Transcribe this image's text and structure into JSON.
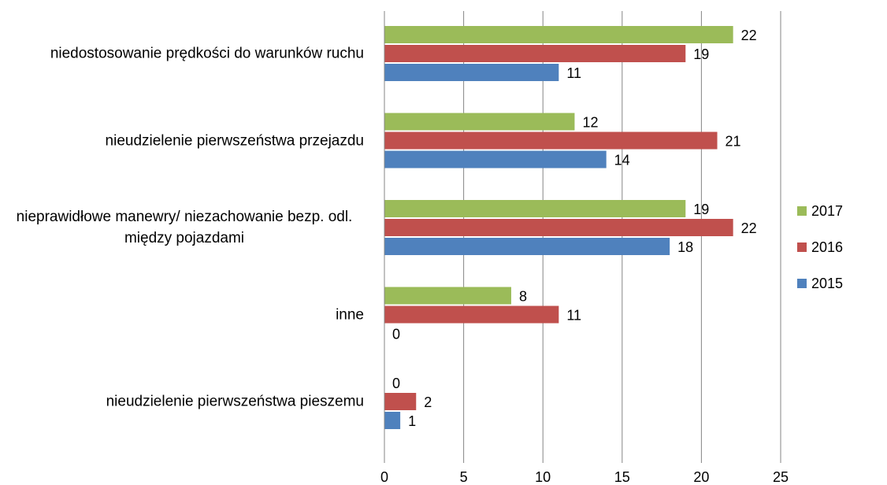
{
  "chart_data": {
    "type": "barh",
    "categories": [
      "niedostosowanie prędkości do warunków ruchu",
      "nieudzielenie pierwszeństwa przejazdu",
      "nieprawidłowe manewry/ niezachowanie bezp. odl. między pojazdami",
      "inne",
      "nieudzielenie pierwszeństwa pieszemu"
    ],
    "series": [
      {
        "name": "2017",
        "color": "#9bbb59",
        "values": [
          22,
          12,
          19,
          8,
          0
        ]
      },
      {
        "name": "2016",
        "color": "#c0504d",
        "values": [
          19,
          21,
          22,
          11,
          2
        ]
      },
      {
        "name": "2015",
        "color": "#4f81bd",
        "values": [
          11,
          14,
          18,
          0,
          1
        ]
      }
    ],
    "xlim": [
      0,
      25
    ],
    "xticks": [
      0,
      5,
      10,
      15,
      20,
      25
    ],
    "grid": true,
    "legend": "right"
  }
}
